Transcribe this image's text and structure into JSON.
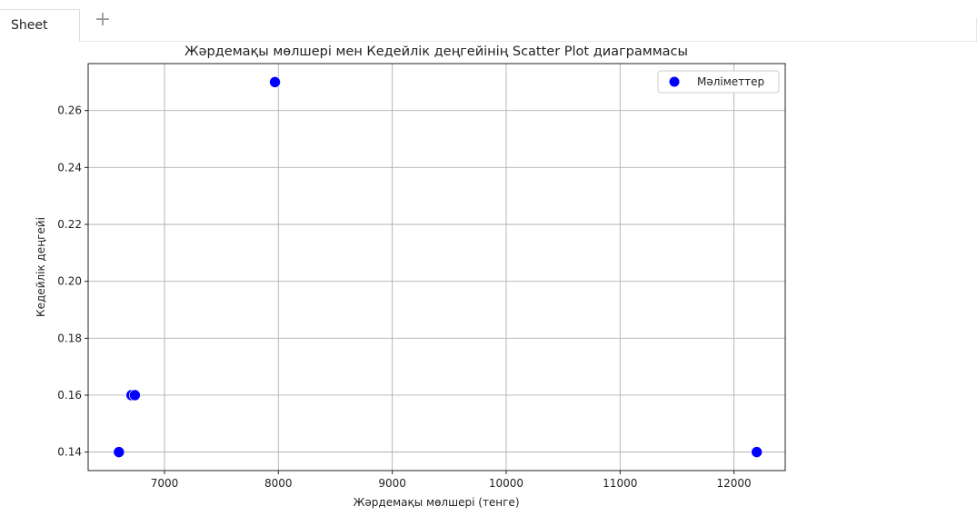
{
  "tabs": {
    "sheet_label": "Sheet",
    "add_label": "+"
  },
  "chart_data": {
    "type": "scatter",
    "title": "Жәрдемақы мөлшері мен Кедейлік деңгейінің Scatter Plot диаграммасы",
    "xlabel": "Жәрдемақы мөлшері (тенге)",
    "ylabel": "Кедейлік деңгейі",
    "xlim": [
      6330,
      12450
    ],
    "ylim": [
      0.1335,
      0.2765
    ],
    "xticks": [
      7000,
      8000,
      9000,
      10000,
      11000,
      12000
    ],
    "yticks": [
      0.14,
      0.16,
      0.18,
      0.2,
      0.22,
      0.24,
      0.26
    ],
    "ytick_labels": [
      "0.14",
      "0.16",
      "0.18",
      "0.20",
      "0.22",
      "0.24",
      "0.26"
    ],
    "grid": true,
    "legend": {
      "placement": "top-right",
      "entries": [
        "Мәліметтер"
      ]
    },
    "series": [
      {
        "name": "Мәліметтер",
        "color": "#0000ff",
        "points": [
          {
            "x": 6600,
            "y": 0.14
          },
          {
            "x": 6710,
            "y": 0.16
          },
          {
            "x": 6740,
            "y": 0.16
          },
          {
            "x": 7970,
            "y": 0.27
          },
          {
            "x": 12200,
            "y": 0.14
          }
        ]
      }
    ]
  }
}
